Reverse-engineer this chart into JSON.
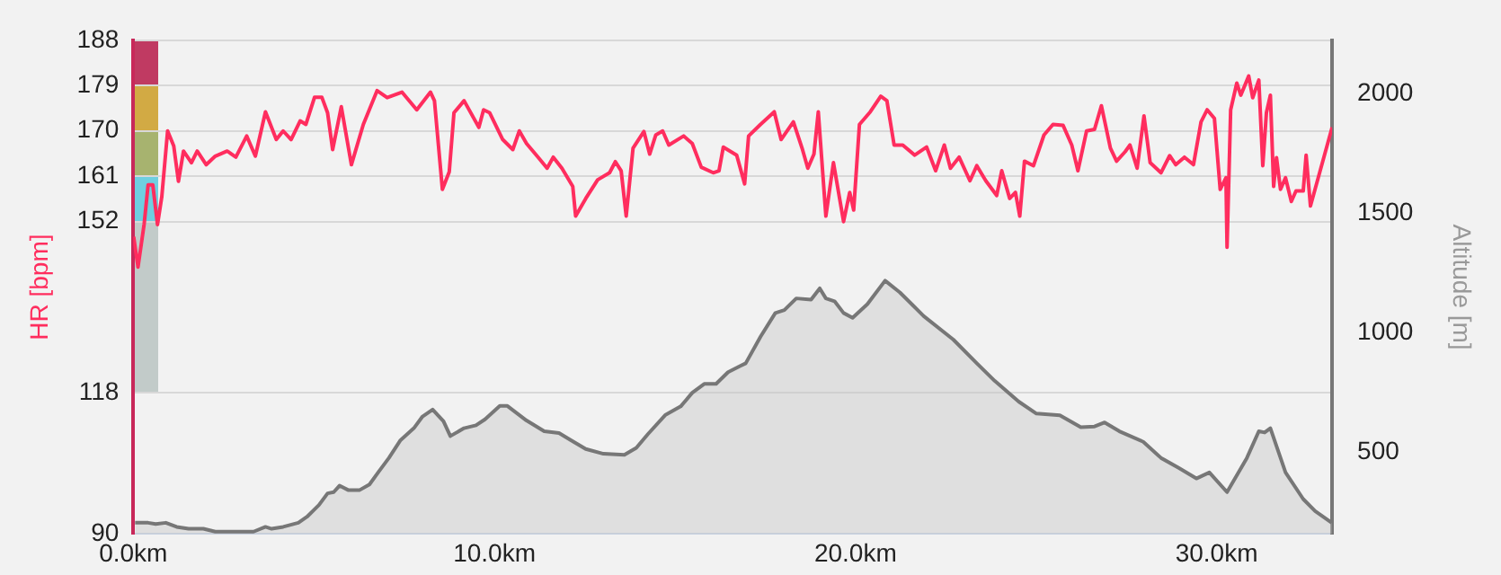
{
  "chart_data": {
    "type": "line",
    "xlim": [
      0,
      33.2
    ],
    "xticks": [
      {
        "value": 0,
        "label": "0.0km"
      },
      {
        "value": 10,
        "label": "10.0km"
      },
      {
        "value": 20,
        "label": "20.0km"
      },
      {
        "value": 30,
        "label": "30.0km"
      }
    ],
    "ylim": [
      90,
      188
    ],
    "yticks": [
      90,
      118,
      152,
      161,
      170,
      179,
      188
    ],
    "y2lim": [
      160,
      2222
    ],
    "y2ticks": [
      500,
      1000,
      1500,
      2000
    ],
    "ylabel": "HR [bpm]",
    "y2label": "Altitude [m]",
    "grid": "y",
    "legend": false,
    "marker": "none",
    "series": [
      {
        "type": "area",
        "axis": "y2",
        "color": "#777777",
        "x": [
          0.05,
          0.41,
          0.62,
          0.9,
          1.2,
          1.53,
          1.94,
          2.27,
          2.67,
          3.33,
          3.66,
          3.83,
          4.15,
          4.57,
          4.81,
          5.14,
          5.38,
          5.55,
          5.71,
          5.96,
          6.26,
          6.54,
          6.78,
          7.08,
          7.4,
          7.77,
          8.01,
          8.29,
          8.59,
          8.78,
          9.16,
          9.49,
          9.74,
          10.15,
          10.36,
          10.89,
          11.38,
          11.79,
          12.12,
          12.53,
          13.02,
          13.6,
          13.93,
          14.25,
          14.74,
          15.16,
          15.48,
          15.81,
          16.14,
          16.47,
          16.8,
          16.96,
          17.37,
          17.78,
          18.03,
          18.36,
          18.77,
          19.01,
          19.18,
          19.42,
          19.67,
          19.92,
          20.33,
          20.82,
          21.23,
          21.89,
          22.71,
          23.36,
          23.86,
          24.52,
          25.01,
          25.66,
          26.24,
          26.62,
          26.9,
          27.31,
          27.97,
          28.46,
          28.95,
          29.44,
          29.8,
          30.29,
          30.84,
          31.17,
          31.33,
          31.49,
          31.91,
          32.4,
          32.73,
          33.19
        ],
        "values": [
          207,
          207,
          202,
          207,
          190,
          182,
          182,
          170,
          170,
          170,
          190,
          182,
          190,
          207,
          232,
          281,
          330,
          335,
          362,
          343,
          343,
          367,
          417,
          478,
          552,
          602,
          651,
          680,
          631,
          569,
          602,
          614,
          639,
          695,
          695,
          634,
          589,
          582,
          552,
          515,
          495,
          491,
          520,
          577,
          658,
          693,
          750,
          787,
          787,
          836,
          861,
          873,
          984,
          1083,
          1095,
          1144,
          1139,
          1186,
          1144,
          1132,
          1083,
          1063,
          1120,
          1218,
          1169,
          1070,
          972,
          873,
          799,
          713,
          663,
          656,
          606,
          609,
          626,
          589,
          545,
          478,
          436,
          392,
          417,
          335,
          478,
          589,
          584,
          602,
          417,
          306,
          256,
          207
        ]
      },
      {
        "axis": "y",
        "color": "#ff2d5e",
        "x": [
          0.01,
          0.13,
          0.3,
          0.41,
          0.54,
          0.67,
          0.79,
          0.95,
          1.12,
          1.25,
          1.39,
          1.61,
          1.77,
          2.02,
          2.27,
          2.6,
          2.84,
          3.14,
          3.38,
          3.66,
          3.96,
          4.15,
          4.37,
          4.62,
          4.78,
          5.02,
          5.22,
          5.38,
          5.52,
          5.76,
          6.04,
          6.37,
          6.75,
          7.03,
          7.44,
          7.85,
          8.23,
          8.34,
          8.56,
          8.75,
          8.88,
          9.16,
          9.57,
          9.7,
          9.87,
          10.23,
          10.51,
          10.69,
          10.89,
          11.22,
          11.46,
          11.63,
          11.87,
          12.17,
          12.25,
          12.53,
          12.86,
          13.19,
          13.35,
          13.51,
          13.65,
          13.84,
          14.14,
          14.3,
          14.47,
          14.66,
          14.83,
          15.24,
          15.48,
          15.73,
          16.06,
          16.22,
          16.34,
          16.71,
          16.93,
          17.04,
          17.37,
          17.75,
          17.94,
          18.28,
          18.52,
          18.68,
          18.85,
          18.97,
          19.18,
          19.39,
          19.67,
          19.84,
          19.95,
          20.11,
          20.41,
          20.7,
          20.87,
          21.07,
          21.31,
          21.64,
          21.97,
          22.22,
          22.46,
          22.63,
          22.87,
          23.17,
          23.36,
          23.61,
          23.91,
          24.05,
          24.27,
          24.43,
          24.55,
          24.68,
          24.93,
          25.22,
          25.47,
          25.75,
          25.99,
          26.16,
          26.4,
          26.62,
          26.81,
          27.06,
          27.23,
          27.47,
          27.6,
          27.8,
          27.99,
          28.16,
          28.46,
          28.7,
          28.87,
          29.11,
          29.36,
          29.57,
          29.74,
          29.94,
          30.1,
          30.26,
          30.29,
          30.39,
          30.56,
          30.67,
          30.89,
          31.0,
          31.17,
          31.28,
          31.38,
          31.49,
          31.58,
          31.66,
          31.77,
          31.91,
          32.07,
          32.2,
          32.4,
          32.48,
          32.6,
          33.2
        ],
        "values": [
          149,
          143,
          151.5,
          159.3,
          159.3,
          151.4,
          157,
          170,
          167,
          160,
          166,
          163.7,
          166,
          163.3,
          165,
          166,
          164.8,
          169,
          165,
          173.8,
          168.3,
          170,
          168.3,
          172,
          171.3,
          176.7,
          176.7,
          173.6,
          166.3,
          174.8,
          163.3,
          171.3,
          178,
          176.6,
          177.7,
          174.2,
          177.7,
          176,
          158.4,
          161.9,
          173.6,
          176,
          170.7,
          174.2,
          173.6,
          168.3,
          166.3,
          170,
          167.5,
          164.7,
          162.6,
          164.8,
          162.6,
          159,
          153.1,
          156.6,
          160.3,
          161.7,
          163.9,
          162.1,
          153.1,
          166.6,
          169.9,
          165.4,
          169.2,
          170,
          167.2,
          169,
          167.5,
          162.8,
          161.7,
          162.1,
          166.8,
          165.2,
          159.5,
          169,
          171.3,
          173.8,
          168.3,
          171.8,
          166.6,
          162.6,
          165.4,
          173.8,
          153.1,
          163.7,
          152,
          157.8,
          154.3,
          171.3,
          173.8,
          176.9,
          176,
          167.2,
          167.2,
          165.2,
          166.8,
          162.1,
          167.2,
          162.6,
          164.8,
          160.1,
          163.1,
          160.1,
          157.2,
          162.1,
          156.6,
          157.8,
          153.1,
          164,
          163.1,
          169.2,
          171.3,
          171.1,
          167.2,
          162.1,
          170,
          170.3,
          175,
          166.6,
          164,
          165.9,
          167.2,
          162.6,
          173,
          163.7,
          161.7,
          165.1,
          163.3,
          164.8,
          163.3,
          171.8,
          174.2,
          172.5,
          158.4,
          160.7,
          146.9,
          174.2,
          179.5,
          177.1,
          180.9,
          176.6,
          180.1,
          163.1,
          173.6,
          177.1,
          159,
          164.7,
          158.4,
          160.7,
          156,
          158.1,
          158.1,
          165.2,
          155.1,
          170.7
        ]
      }
    ]
  }
}
